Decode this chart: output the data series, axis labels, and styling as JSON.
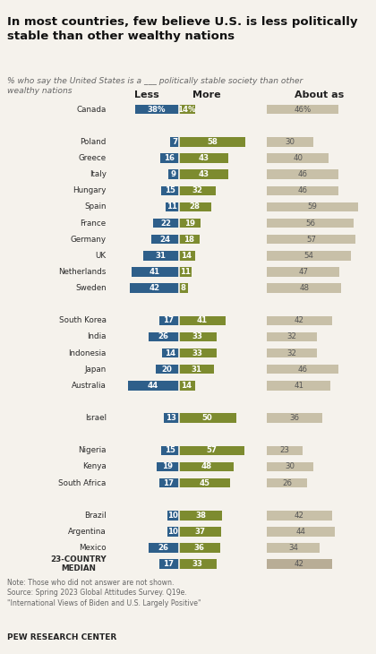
{
  "title": "In most countries, few believe U.S. is less politically\nstable than other wealthy nations",
  "subtitle": "% who say the United States is a ___ politically stable society than other\nwealthy nations",
  "countries": [
    "Canada",
    "",
    "Poland",
    "Greece",
    "Italy",
    "Hungary",
    "Spain",
    "France",
    "Germany",
    "UK",
    "Netherlands",
    "Sweden",
    "",
    "South Korea",
    "India",
    "Indonesia",
    "Japan",
    "Australia",
    "",
    "Israel",
    "",
    "Nigeria",
    "Kenya",
    "South Africa",
    "",
    "Brazil",
    "Argentina",
    "Mexico",
    "23-COUNTRY\nMEDIAN"
  ],
  "less": [
    38,
    null,
    7,
    16,
    9,
    15,
    11,
    22,
    24,
    31,
    41,
    42,
    null,
    17,
    26,
    14,
    20,
    44,
    null,
    13,
    null,
    15,
    19,
    17,
    null,
    10,
    10,
    26,
    17
  ],
  "more": [
    14,
    null,
    58,
    43,
    43,
    32,
    28,
    19,
    18,
    14,
    11,
    8,
    null,
    41,
    33,
    33,
    31,
    14,
    null,
    50,
    null,
    57,
    48,
    45,
    null,
    38,
    37,
    36,
    33
  ],
  "about_as": [
    46,
    null,
    30,
    40,
    46,
    46,
    59,
    56,
    57,
    54,
    47,
    48,
    null,
    42,
    32,
    32,
    46,
    41,
    null,
    36,
    null,
    23,
    30,
    26,
    null,
    42,
    44,
    34,
    42
  ],
  "color_less": "#2E5F8A",
  "color_more": "#7D8B2F",
  "color_about": "#C8C0A8",
  "color_median_about": "#B8AD96",
  "bg_color": "#F5F2EC",
  "note": "Note: Those who did not answer are not shown.\nSource: Spring 2023 Global Attitudes Survey. Q19e.\n\"International Views of Biden and U.S. Largely Positive\"",
  "source_bold": "PEW RESEARCH CENTER"
}
